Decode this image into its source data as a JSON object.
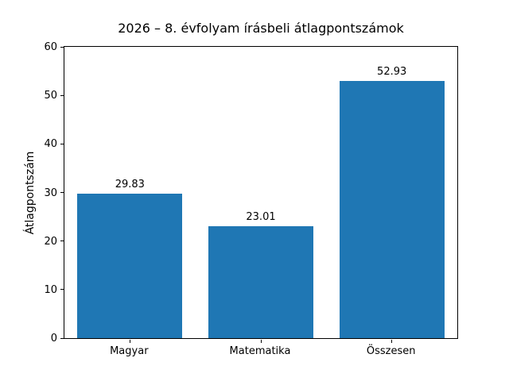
{
  "chart_data": {
    "type": "bar",
    "title": "2026 – 8. évfolyam írásbeli átlagpontszámok",
    "xlabel": "",
    "ylabel": "Átlagpontszám",
    "categories": [
      "Magyar",
      "Matematika",
      "Összesen"
    ],
    "values": [
      29.83,
      23.01,
      52.93
    ],
    "value_labels": [
      "29.83",
      "23.01",
      "52.93"
    ],
    "ylim": [
      0,
      60
    ],
    "yticks": [
      0,
      10,
      20,
      30,
      40,
      50,
      60
    ],
    "bar_color": "#1f77b4",
    "grid": false,
    "legend_position": "none"
  }
}
